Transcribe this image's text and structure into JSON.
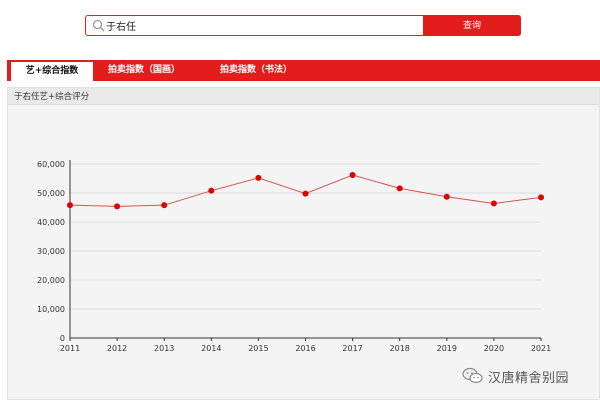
{
  "search": {
    "value": "于右任",
    "button_label": "查询"
  },
  "tabs": [
    {
      "label": "艺+综合指数",
      "active": true
    },
    {
      "label": "拍卖指数（国画）",
      "active": false
    },
    {
      "label": "拍卖指数（书法）",
      "active": false
    }
  ],
  "panel": {
    "title": "于右任艺+综合评分"
  },
  "watermark": {
    "text": "汉唐精舍别园"
  },
  "colors": {
    "accent": "#e31c1c",
    "line": "#d9534f",
    "point": "#e00000"
  },
  "chart_data": {
    "type": "line",
    "title": "",
    "xlabel": "",
    "ylabel": "",
    "categories": [
      "2011",
      "2012",
      "2013",
      "2014",
      "2015",
      "2016",
      "2017",
      "2018",
      "2019",
      "2020",
      "2021"
    ],
    "series": [
      {
        "name": "于右任艺+综合评分",
        "values": [
          45800,
          45400,
          45800,
          50800,
          55200,
          49800,
          56200,
          51600,
          48700,
          46400,
          48500
        ]
      }
    ],
    "ylim": [
      0,
      60000
    ],
    "yticks": [
      0,
      10000,
      20000,
      30000,
      40000,
      50000,
      60000
    ],
    "ytick_labels": [
      "0",
      "10,000",
      "20,000",
      "30,000",
      "40,000",
      "50,000",
      "60,000"
    ],
    "grid": true,
    "legend": "none"
  }
}
